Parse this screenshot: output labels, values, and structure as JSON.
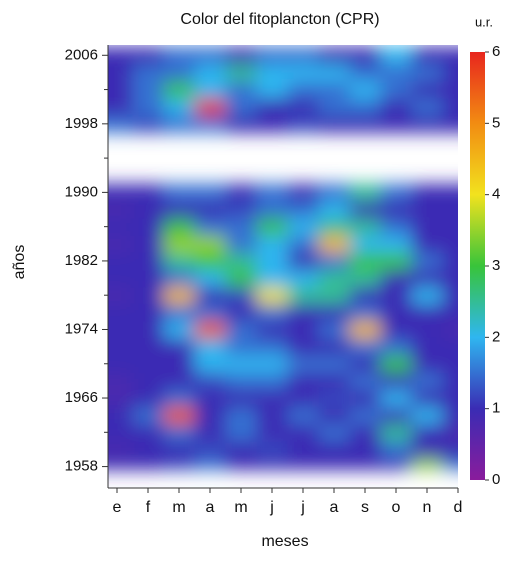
{
  "chart_data": {
    "type": "heatmap",
    "title": "Color del fitoplancton (CPR)",
    "x_label": "meses",
    "y_label": "años",
    "colorbar_label": "u.r.",
    "categories": [
      "e",
      "f",
      "m",
      "a",
      "m",
      "j",
      "j",
      "a",
      "s",
      "o",
      "n",
      "d"
    ],
    "y": [
      1958,
      1960,
      1962,
      1964,
      1966,
      1968,
      1970,
      1972,
      1974,
      1976,
      1978,
      1980,
      1982,
      1984,
      1986,
      1988,
      1990,
      1992,
      1994,
      1996,
      1998,
      2000,
      2002,
      2004,
      2006
    ],
    "values": [
      [
        1,
        1,
        1.2,
        1.5,
        1,
        1,
        1,
        1,
        1,
        1,
        3.5,
        1.5
      ],
      [
        0.8,
        1,
        1,
        1.2,
        1,
        1.2,
        1,
        1,
        1,
        1.5,
        1,
        1
      ],
      [
        1,
        1,
        1.5,
        1,
        1.5,
        1,
        1,
        1.5,
        1,
        2.5,
        1,
        0.8
      ],
      [
        1,
        1.5,
        5.5,
        1,
        1.5,
        1,
        1.5,
        1,
        1.5,
        1,
        2,
        1
      ],
      [
        0.8,
        1,
        1.5,
        1,
        1,
        1,
        1,
        1.2,
        1,
        2,
        1,
        1
      ],
      [
        0.8,
        1,
        1,
        1.2,
        1.5,
        1.5,
        1,
        1,
        1.5,
        1,
        1.5,
        1
      ],
      [
        1,
        1,
        1,
        2,
        2,
        2,
        1.5,
        1.5,
        1,
        3,
        1,
        1
      ],
      [
        1,
        1,
        1,
        2,
        1.5,
        1.5,
        1,
        1,
        1.5,
        1.5,
        1,
        1
      ],
      [
        1,
        1,
        2,
        5.5,
        1.5,
        1,
        1,
        1.5,
        4.5,
        1,
        1,
        0.8
      ],
      [
        1,
        1,
        1.5,
        1.5,
        1,
        1.5,
        1,
        1,
        1.5,
        1,
        1,
        1
      ],
      [
        0.8,
        1,
        4.5,
        1,
        1.2,
        4,
        2.5,
        2.5,
        1,
        1,
        2,
        1
      ],
      [
        1,
        1,
        1.5,
        2,
        3,
        2,
        2,
        2.5,
        2.5,
        1,
        1,
        1
      ],
      [
        1,
        1,
        2.5,
        3,
        2.5,
        2,
        1,
        1.5,
        3,
        3,
        1.5,
        1
      ],
      [
        0.8,
        1,
        3.5,
        3.5,
        1.5,
        2,
        1.5,
        4.5,
        2,
        2,
        1,
        1
      ],
      [
        1,
        1,
        3,
        1.5,
        1.5,
        3,
        2,
        2.5,
        2.5,
        1.5,
        1,
        1
      ],
      [
        0.8,
        1,
        1,
        1,
        1.2,
        1.5,
        1.5,
        2,
        1,
        1,
        1,
        1
      ],
      [
        1,
        1,
        1.5,
        1.5,
        1,
        1.5,
        1,
        1.5,
        2.5,
        1.5,
        1,
        1
      ],
      [
        null,
        null,
        null,
        null,
        null,
        null,
        null,
        null,
        null,
        null,
        null,
        null
      ],
      [
        null,
        null,
        null,
        null,
        null,
        null,
        null,
        null,
        null,
        null,
        null,
        null
      ],
      [
        null,
        null,
        null,
        null,
        null,
        null,
        null,
        null,
        null,
        null,
        null,
        null
      ],
      [
        1.5,
        1.2,
        1.5,
        1.5,
        1,
        1,
        1.2,
        1,
        1,
        1,
        1,
        1
      ],
      [
        1,
        1.5,
        2,
        6,
        1.5,
        1,
        1,
        1.5,
        1.5,
        1,
        1.5,
        1
      ],
      [
        1,
        1.5,
        3,
        2,
        1.5,
        2,
        1.5,
        1.5,
        2,
        1.5,
        1,
        1
      ],
      [
        1,
        1.5,
        1.5,
        2,
        2.5,
        2,
        2,
        2,
        1.5,
        1.5,
        1.5,
        1
      ],
      [
        1,
        1,
        1.5,
        1.5,
        1,
        1.5,
        1.5,
        1,
        1,
        2,
        1,
        1
      ]
    ],
    "ylim": [
      1955.5,
      2007.2
    ],
    "yticks": [
      1958,
      1966,
      1974,
      1982,
      1990,
      1998,
      2006
    ],
    "yminorticks": [
      1962,
      1970,
      1978,
      1986,
      1994,
      2002
    ],
    "clim": [
      0,
      6
    ],
    "cticks": [
      0,
      1,
      2,
      3,
      4,
      5,
      6
    ],
    "colors": [
      "#8a1c9c",
      "#3a2cb4",
      "#2fb6f0",
      "#38c43a",
      "#f2e21e",
      "#f28c12",
      "#e8261e"
    ]
  }
}
